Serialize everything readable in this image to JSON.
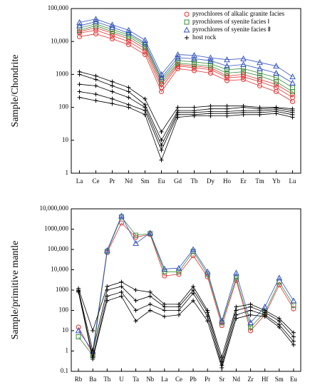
{
  "chart_data": [
    {
      "type": "line",
      "ylabel": "Sample/Chondrite",
      "log_y": true,
      "legend": "upper right",
      "categories": [
        "La",
        "Ce",
        "Pr",
        "Nd",
        "Sm",
        "Eu",
        "Gd",
        "Tb",
        "Dy",
        "Ho",
        "Er",
        "Tm",
        "Yb",
        "Lu"
      ],
      "ylim": [
        1,
        100000
      ],
      "yticks": [
        1,
        10,
        100,
        1000,
        {
          "value": 10000,
          "label": "10,000"
        },
        {
          "value": 100000,
          "label": "100,000"
        }
      ],
      "series": [
        {
          "name": "pyrochlores of alkalic granite facies",
          "color": "#e03030",
          "marker": "circle",
          "lines": [
            [
              14000,
              17000,
              12000,
              8000,
              4000,
              300,
              1500,
              1300,
              1100,
              650,
              700,
              450,
              300,
              150
            ],
            [
              18000,
              22000,
              15000,
              10000,
              5000,
              400,
              1800,
              1600,
              1400,
              800,
              850,
              600,
              400,
              200
            ],
            [
              20000,
              26000,
              18000,
              12000,
              6000,
              500,
              2000,
              1800,
              1600,
              900,
              1000,
              700,
              500,
              250
            ]
          ]
        },
        {
          "name": "pyrochlores of syenite facies Ⅰ",
          "color": "#3a8a3a",
          "marker": "square",
          "lines": [
            [
              22000,
              30000,
              20000,
              14000,
              7000,
              600,
              2200,
              2000,
              1800,
              1100,
              1200,
              900,
              600,
              300
            ],
            [
              26000,
              34000,
              23000,
              16000,
              8000,
              700,
              2600,
              2400,
              2100,
              1400,
              1500,
              1100,
              800,
              400
            ]
          ]
        },
        {
          "name": "pyrochlores of syenite facies Ⅱ",
          "color": "#3050c0",
          "marker": "triangle",
          "lines": [
            [
              30000,
              40000,
              27000,
              18000,
              9000,
              800,
              3200,
              3000,
              2600,
              1800,
              2000,
              1500,
              1100,
              550
            ],
            [
              38000,
              48000,
              32000,
              22000,
              11000,
              1000,
              4000,
              3800,
              3200,
              2800,
              3000,
              2300,
              1800,
              850
            ]
          ]
        },
        {
          "name": "host rock",
          "color": "#000000",
          "marker": "plus",
          "lines": [
            [
              1200,
              900,
              600,
              400,
              180,
              18,
              100,
              100,
              110,
              110,
              110,
              100,
              100,
              90
            ],
            [
              1000,
              700,
              450,
              300,
              120,
              10,
              80,
              80,
              90,
              90,
              100,
              90,
              95,
              80
            ],
            [
              500,
              450,
              300,
              200,
              100,
              7,
              70,
              70,
              75,
              75,
              80,
              80,
              85,
              70
            ],
            [
              300,
              250,
              180,
              120,
              80,
              5,
              60,
              60,
              65,
              65,
              70,
              70,
              75,
              60
            ],
            [
              200,
              160,
              130,
              100,
              60,
              2.5,
              50,
              55,
              55,
              55,
              60,
              60,
              65,
              50
            ]
          ]
        }
      ]
    },
    {
      "type": "line",
      "ylabel": "Sample/primitive mantle",
      "log_y": true,
      "categories": [
        "Rb",
        "Ba",
        "Th",
        "U",
        "Ta",
        "Nb",
        "La",
        "Ce",
        "Pb",
        "Pr",
        "Sr",
        "Nd",
        "Zr",
        "Hf",
        "Sm",
        "Eu"
      ],
      "ylim": [
        0.1,
        10000000
      ],
      "yticks": [
        0.1,
        1,
        10,
        100,
        1000,
        {
          "value": 10000,
          "label": "10,000"
        },
        {
          "value": 100000,
          "label": "100,000"
        },
        {
          "value": 1000000,
          "label": "1000,000"
        },
        {
          "value": 10000000,
          "label": "10,000,000"
        }
      ],
      "series": [
        {
          "color": "#e03030",
          "marker": "circle",
          "lines": [
            [
              15,
              0.7,
              70000,
              2000000,
              400000,
              550000,
              5000,
              6000,
              50000,
              4500,
              18,
              3000,
              10,
              60,
              1800,
              120
            ]
          ]
        },
        {
          "color": "#3a8a3a",
          "marker": "square",
          "lines": [
            [
              5,
              0.6,
              80000,
              4000000,
              500000,
              600000,
              8000,
              8000,
              80000,
              6000,
              25,
              4000,
              15,
              80,
              2500,
              180
            ]
          ]
        },
        {
          "color": "#3050c0",
          "marker": "triangle",
          "lines": [
            [
              10,
              1,
              90000,
              4500000,
              200000,
              650000,
              11000,
              12000,
              100000,
              8000,
              30,
              7000,
              25,
              150,
              4000,
              300
            ]
          ]
        },
        {
          "color": "#000000",
          "marker": "plus",
          "lines": [
            [
              1200,
              10,
              1500,
              2500,
              1000,
              800,
              200,
              200,
              1500,
              100,
              0.5,
              150,
              200,
              100,
              40,
              8
            ],
            [
              1000,
              1,
              1000,
              1500,
              300,
              500,
              150,
              150,
              1000,
              80,
              0.3,
              100,
              150,
              80,
              30,
              5
            ],
            [
              900,
              0.5,
              500,
              800,
              100,
              200,
              100,
              100,
              700,
              50,
              0.2,
              60,
              100,
              60,
              20,
              3
            ],
            [
              800,
              0.4,
              300,
              500,
              30,
              100,
              50,
              60,
              300,
              30,
              0.15,
              40,
              60,
              50,
              15,
              2
            ]
          ]
        }
      ]
    }
  ]
}
